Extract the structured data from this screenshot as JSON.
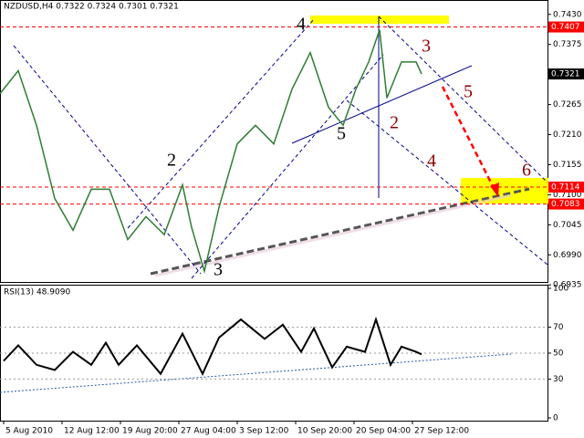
{
  "chart_data": [
    {
      "type": "line",
      "title": "NZDUSD,H4  0.7322 0.7324 0.7301 0.7321",
      "xlim": [
        0,
        150
      ],
      "xticks": [
        {
          "value": 1,
          "label": "5 Aug 2010"
        },
        {
          "value": 17,
          "label": "12 Aug 12:00"
        },
        {
          "value": 33,
          "label": "19 Aug 20:00"
        },
        {
          "value": 49,
          "label": "27 Aug 04:00"
        },
        {
          "value": 65,
          "label": "3 Sep 12:00"
        },
        {
          "value": 81,
          "label": "10 Sep 20:00"
        },
        {
          "value": 97,
          "label": "20 Sep 04:00"
        },
        {
          "value": 113,
          "label": "27 Sep 12:00"
        }
      ],
      "ylim": [
        0.6932,
        0.7443
      ],
      "yticks": [
        {
          "value": 0.743,
          "label": "0.7430"
        },
        0.7375,
        0.7265,
        {
          "value": 0.721,
          "label": "0.7210"
        },
        0.7155,
        {
          "value": 0.71,
          "label": "0.7100"
        },
        0.7045,
        {
          "value": 0.699,
          "label": "0.6990"
        },
        0.6935
      ],
      "price_levels": [
        {
          "value": 0.7407,
          "label": "0.7407",
          "color": "#ff0000"
        },
        {
          "value": 0.7321,
          "label": "0.7321",
          "color": "#000000"
        },
        {
          "value": 0.7114,
          "label": "0.7114",
          "color": "#ff0000"
        },
        {
          "value": 0.7083,
          "label": "0.7083",
          "color": "#ff0000"
        }
      ],
      "x": [
        0,
        5,
        10,
        15,
        20,
        25,
        30,
        35,
        40,
        45,
        50,
        52.5,
        56,
        60,
        65,
        70,
        75,
        80,
        85,
        90,
        94,
        97.5,
        101,
        104,
        106,
        110,
        114,
        115.5
      ],
      "series": [
        {
          "name": "NZDUSD",
          "color": "#2e7d32",
          "values": [
            0.7285,
            0.7327,
            0.7227,
            0.7093,
            0.7035,
            0.711,
            0.711,
            0.7018,
            0.706,
            0.7027,
            0.7118,
            0.704,
            0.696,
            0.7077,
            0.7193,
            0.7227,
            0.7193,
            0.7293,
            0.736,
            0.726,
            0.7227,
            0.7293,
            0.7343,
            0.7402,
            0.7277,
            0.7343,
            0.7343,
            0.7321
          ]
        }
      ],
      "annotations": [
        "4",
        "3",
        "5",
        "2",
        "5",
        "4",
        "6",
        "2",
        "3"
      ]
    },
    {
      "type": "line",
      "title": "RSI(13) 48.9090",
      "xlim": [
        0,
        150
      ],
      "ylim": [
        0,
        100
      ],
      "yticks": [
        100,
        70,
        50,
        30,
        0
      ],
      "x": [
        1,
        5,
        10,
        15,
        20,
        25,
        29,
        32.5,
        37.5,
        44,
        50,
        55.5,
        60,
        66,
        72.5,
        77.5,
        82.5,
        86,
        91,
        95,
        100,
        103,
        107,
        110,
        114,
        115.5
      ],
      "series": [
        {
          "name": "RSI(13)",
          "color": "#000000",
          "values": [
            44,
            56,
            41,
            37,
            51,
            41,
            58,
            41,
            56,
            34,
            65,
            34,
            62,
            76,
            61,
            72,
            51,
            69,
            39,
            55,
            51,
            76,
            41,
            55,
            51,
            49
          ]
        }
      ]
    }
  ]
}
